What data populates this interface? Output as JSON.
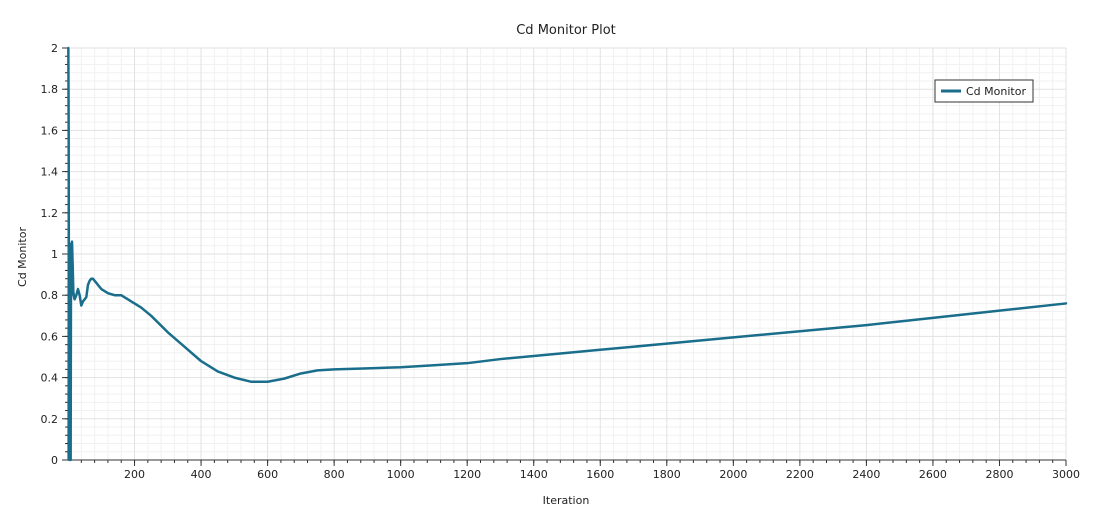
{
  "chart_data": {
    "type": "line",
    "title": "Cd Monitor Plot",
    "xlabel": "Iteration",
    "ylabel": "Cd Monitor",
    "xlim": [
      0,
      3000
    ],
    "ylim": [
      0,
      2
    ],
    "x_ticks": [
      200,
      400,
      600,
      800,
      1000,
      1200,
      1400,
      1600,
      1800,
      2000,
      2200,
      2400,
      2600,
      2800,
      3000
    ],
    "y_ticks": [
      0,
      0.2,
      0.4,
      0.6,
      0.8,
      1,
      1.2,
      1.4,
      1.6,
      1.8,
      2
    ],
    "x_tick_labels": [
      "200",
      "400",
      "600",
      "800",
      "1000",
      "1200",
      "1400",
      "1600",
      "1800",
      "2000",
      "2200",
      "2400",
      "2600",
      "2800",
      "3000"
    ],
    "y_tick_labels": [
      "0",
      "0.2",
      "0.4",
      "0.6",
      "0.8",
      "1",
      "1.2",
      "1.4",
      "1.6",
      "1.8",
      "2"
    ],
    "grid": true,
    "legend": {
      "position": "top-right"
    },
    "series": [
      {
        "name": "Cd Monitor",
        "color": "#1a6e8c",
        "x": [
          1,
          2,
          3,
          4,
          5,
          6,
          7,
          8,
          9,
          10,
          12,
          14,
          16,
          18,
          20,
          25,
          30,
          35,
          40,
          45,
          50,
          55,
          60,
          65,
          70,
          75,
          80,
          85,
          90,
          95,
          100,
          110,
          120,
          130,
          140,
          150,
          160,
          170,
          180,
          190,
          200,
          220,
          250,
          300,
          350,
          400,
          450,
          500,
          550,
          580,
          600,
          650,
          700,
          750,
          800,
          900,
          1000,
          1100,
          1200,
          1300,
          1400,
          1600,
          1800,
          2000,
          2200,
          2400,
          2600,
          2800,
          3000
        ],
        "y": [
          2.0,
          1.6,
          0.4,
          0.0,
          0.9,
          1.05,
          0.5,
          0.0,
          0.9,
          0.8,
          1.06,
          0.95,
          0.82,
          0.79,
          0.78,
          0.8,
          0.83,
          0.8,
          0.75,
          0.77,
          0.78,
          0.79,
          0.85,
          0.87,
          0.88,
          0.88,
          0.87,
          0.86,
          0.85,
          0.84,
          0.83,
          0.82,
          0.81,
          0.805,
          0.8,
          0.8,
          0.8,
          0.79,
          0.78,
          0.77,
          0.76,
          0.74,
          0.7,
          0.62,
          0.55,
          0.48,
          0.43,
          0.4,
          0.38,
          0.38,
          0.38,
          0.395,
          0.42,
          0.435,
          0.44,
          0.445,
          0.45,
          0.46,
          0.47,
          0.49,
          0.505,
          0.535,
          0.565,
          0.595,
          0.625,
          0.655,
          0.69,
          0.725,
          0.76
        ]
      }
    ]
  }
}
